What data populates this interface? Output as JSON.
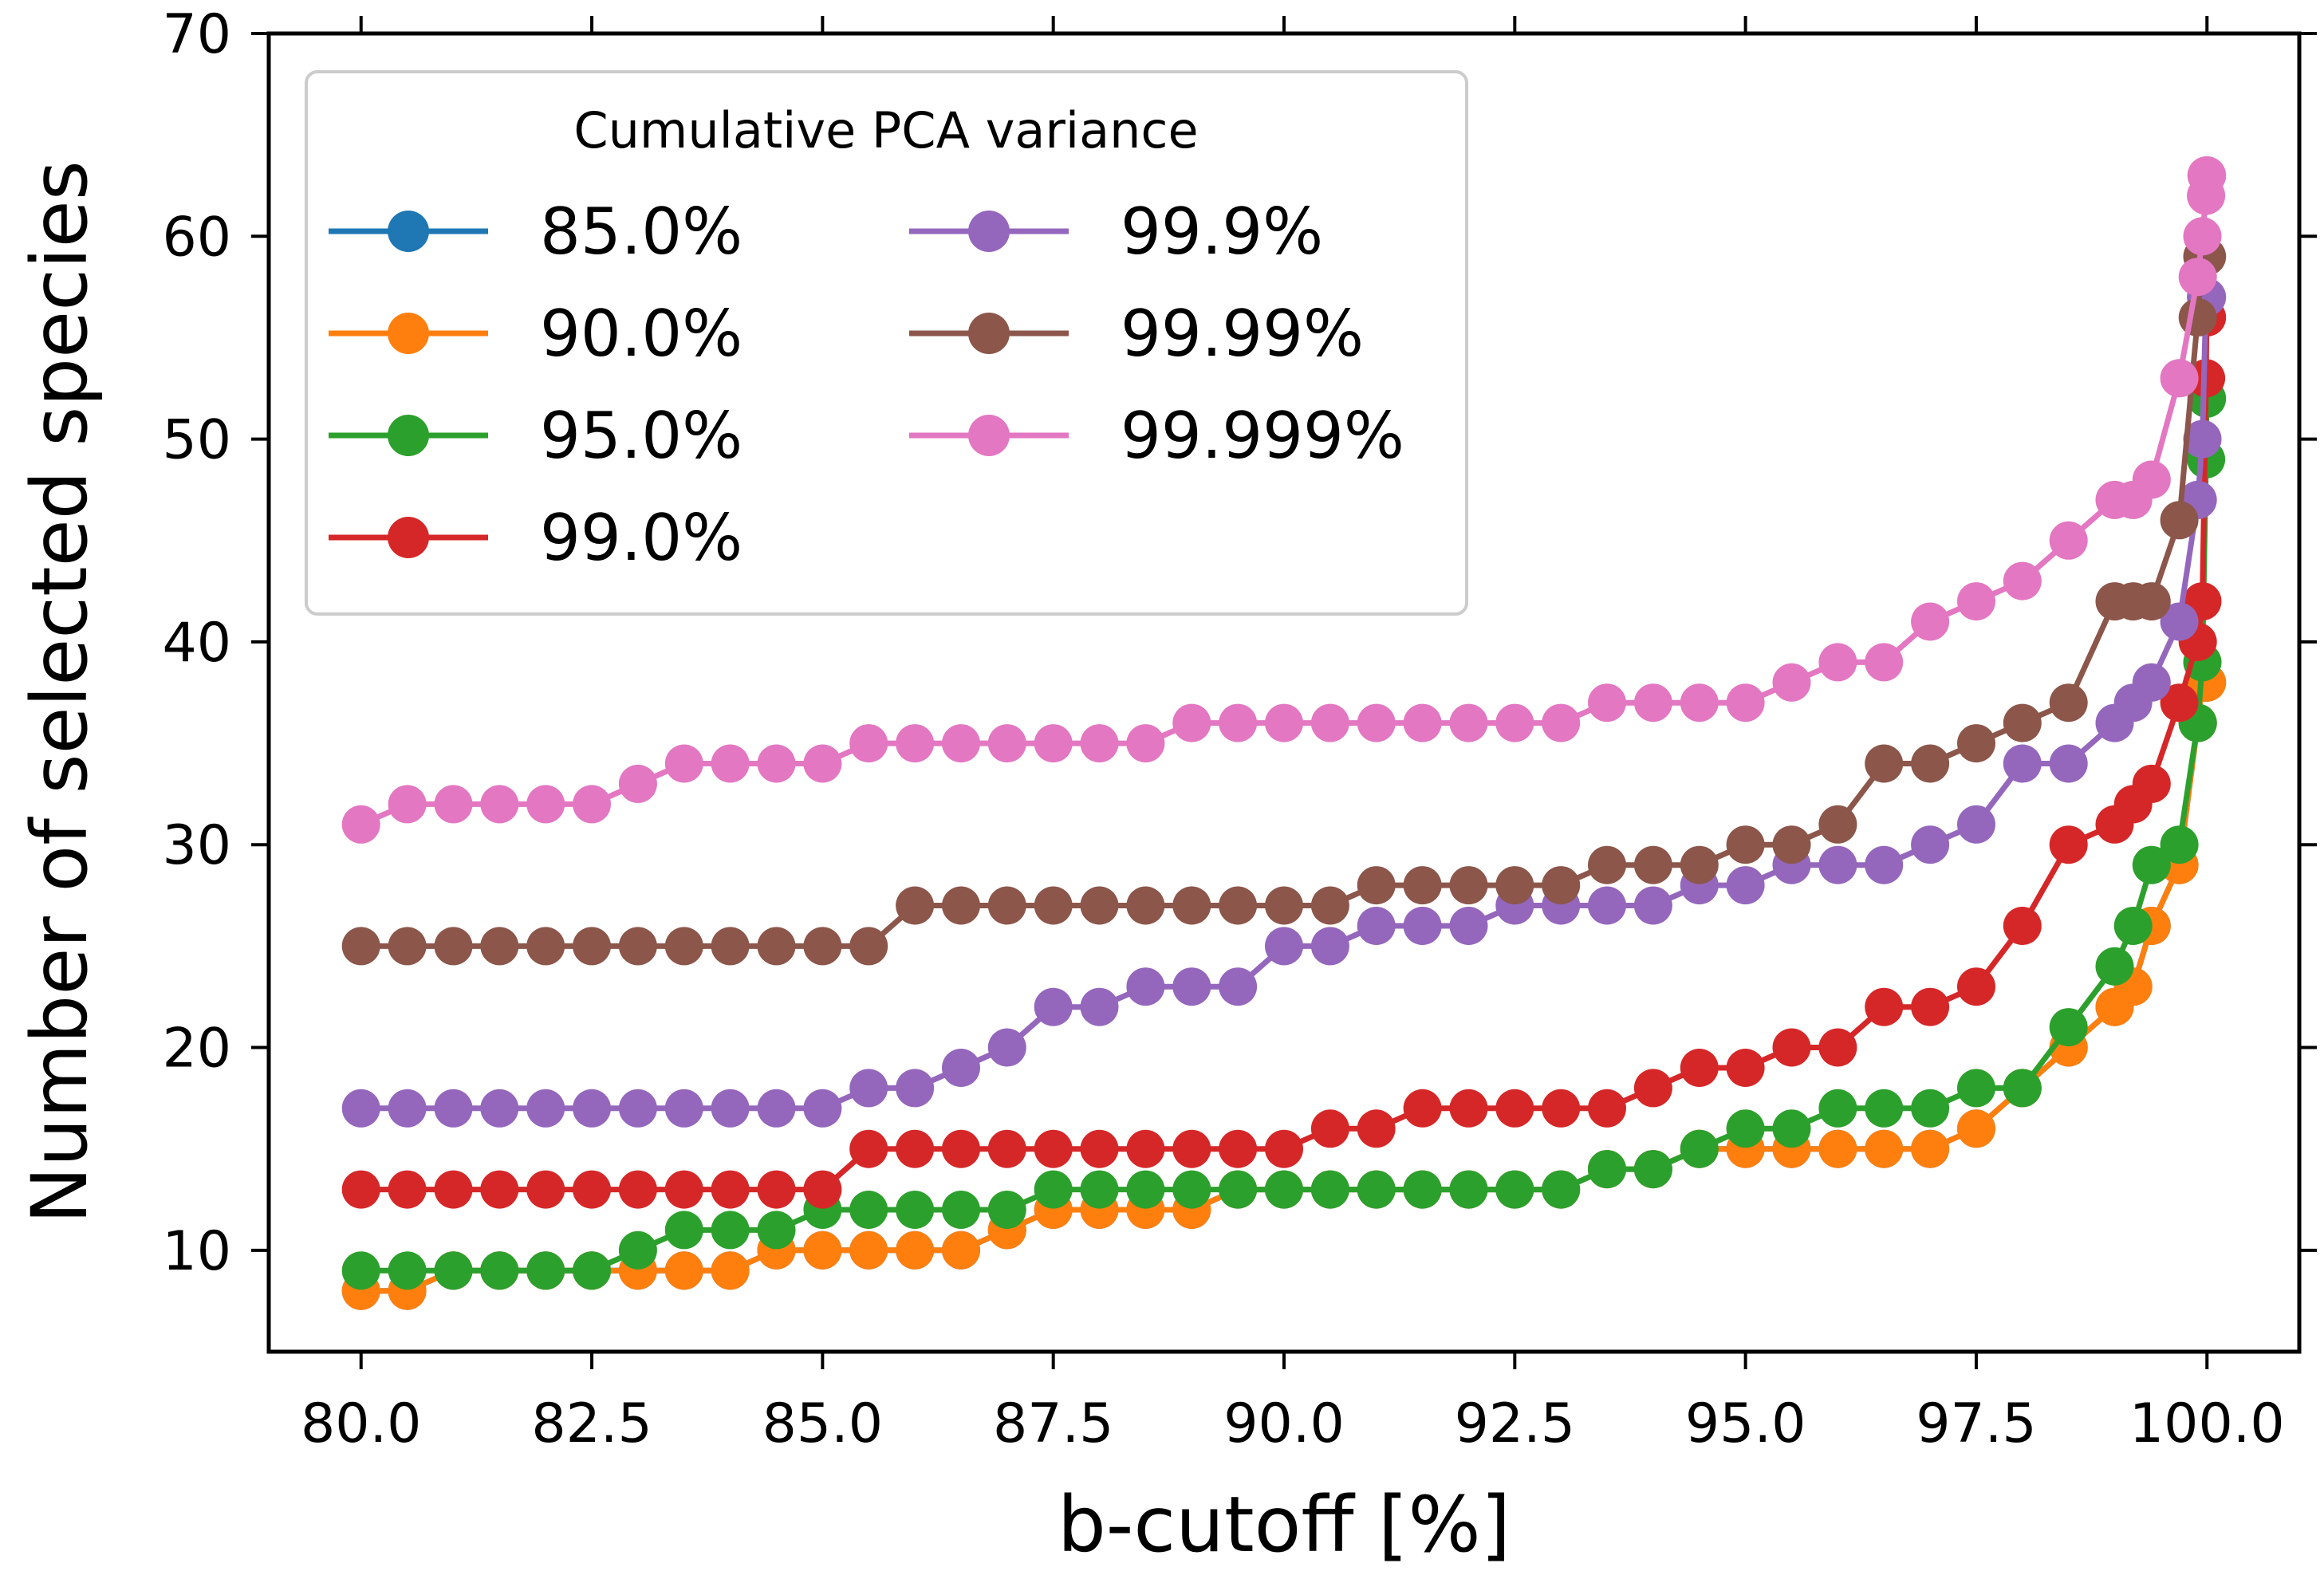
{
  "chart_data": {
    "type": "line",
    "xlabel": "b-cutoff [%]",
    "ylabel": "Number of selected species",
    "xlim": [
      79.0,
      101.0
    ],
    "ylim": [
      5,
      70
    ],
    "xticks": [
      80.0,
      82.5,
      85.0,
      87.5,
      90.0,
      92.5,
      95.0,
      97.5,
      100.0
    ],
    "xtick_labels": [
      "80.0",
      "82.5",
      "85.0",
      "87.5",
      "90.0",
      "92.5",
      "95.0",
      "97.5",
      "100.0"
    ],
    "yticks": [
      10,
      20,
      30,
      40,
      50,
      60,
      70
    ],
    "ytick_labels": [
      "10",
      "20",
      "30",
      "40",
      "50",
      "60",
      "70"
    ],
    "legend": {
      "title": "Cumulative PCA variance",
      "position": "top-left",
      "columns": 2
    },
    "x": [
      80.0,
      80.5,
      81.0,
      81.5,
      82.0,
      82.5,
      83.0,
      83.5,
      84.0,
      84.5,
      85.0,
      85.5,
      86.0,
      86.5,
      87.0,
      87.5,
      88.0,
      88.5,
      89.0,
      89.5,
      90.0,
      90.5,
      91.0,
      91.5,
      92.0,
      92.5,
      93.0,
      93.5,
      94.0,
      94.5,
      95.0,
      95.5,
      96.0,
      96.5,
      97.0,
      97.5,
      98.0,
      98.5,
      99.0,
      99.2,
      99.4,
      99.7,
      99.9,
      99.95,
      99.99,
      99.995,
      99.999
    ],
    "series": [
      {
        "name": "85.0%",
        "color": "#1f77b4",
        "values": [
          8,
          8,
          9,
          9,
          9,
          9,
          9,
          9,
          9,
          10,
          10,
          10,
          10,
          10,
          11,
          12,
          12,
          12,
          12,
          13,
          13,
          13,
          13,
          13,
          13,
          13,
          13,
          14,
          14,
          15,
          15,
          15,
          15,
          15,
          15,
          16,
          18,
          20,
          22,
          23,
          26,
          29,
          36,
          38,
          38,
          38,
          38
        ]
      },
      {
        "name": "90.0%",
        "color": "#ff7f0e",
        "values": [
          8,
          8,
          9,
          9,
          9,
          9,
          9,
          9,
          9,
          10,
          10,
          10,
          10,
          10,
          11,
          12,
          12,
          12,
          12,
          13,
          13,
          13,
          13,
          13,
          13,
          13,
          13,
          14,
          14,
          15,
          15,
          15,
          15,
          15,
          15,
          16,
          18,
          20,
          22,
          23,
          26,
          29,
          36,
          38,
          38,
          38,
          38
        ]
      },
      {
        "name": "95.0%",
        "color": "#2ca02c",
        "values": [
          9,
          9,
          9,
          9,
          9,
          9,
          10,
          11,
          11,
          11,
          12,
          12,
          12,
          12,
          12,
          13,
          13,
          13,
          13,
          13,
          13,
          13,
          13,
          13,
          13,
          13,
          13,
          14,
          14,
          15,
          16,
          16,
          17,
          17,
          17,
          18,
          18,
          21,
          24,
          26,
          29,
          30,
          36,
          39,
          49,
          52,
          52
        ]
      },
      {
        "name": "99.0%",
        "color": "#d62728",
        "values": [
          13,
          13,
          13,
          13,
          13,
          13,
          13,
          13,
          13,
          13,
          13,
          15,
          15,
          15,
          15,
          15,
          15,
          15,
          15,
          15,
          15,
          16,
          16,
          17,
          17,
          17,
          17,
          17,
          18,
          19,
          19,
          20,
          20,
          22,
          22,
          23,
          26,
          30,
          31,
          32,
          33,
          37,
          40,
          42,
          53,
          56,
          56
        ]
      },
      {
        "name": "99.9%",
        "color": "#9467bd",
        "values": [
          17,
          17,
          17,
          17,
          17,
          17,
          17,
          17,
          17,
          17,
          17,
          18,
          18,
          19,
          20,
          22,
          22,
          23,
          23,
          23,
          25,
          25,
          26,
          26,
          26,
          27,
          27,
          27,
          27,
          28,
          28,
          29,
          29,
          29,
          30,
          31,
          34,
          34,
          36,
          37,
          38,
          41,
          47,
          50,
          57,
          57,
          57
        ]
      },
      {
        "name": "99.99%",
        "color": "#8c564b",
        "values": [
          25,
          25,
          25,
          25,
          25,
          25,
          25,
          25,
          25,
          25,
          25,
          25,
          27,
          27,
          27,
          27,
          27,
          27,
          27,
          27,
          27,
          27,
          28,
          28,
          28,
          28,
          28,
          29,
          29,
          29,
          30,
          30,
          31,
          34,
          34,
          35,
          36,
          37,
          42,
          42,
          42,
          46,
          56,
          59,
          59,
          59,
          59
        ]
      },
      {
        "name": "99.999%",
        "color": "#e377c2",
        "values": [
          31,
          32,
          32,
          32,
          32,
          32,
          33,
          34,
          34,
          34,
          34,
          35,
          35,
          35,
          35,
          35,
          35,
          35,
          36,
          36,
          36,
          36,
          36,
          36,
          36,
          36,
          36,
          37,
          37,
          37,
          37,
          38,
          39,
          39,
          41,
          42,
          43,
          45,
          47,
          47,
          48,
          53,
          58,
          60,
          62,
          63,
          63
        ]
      }
    ]
  }
}
